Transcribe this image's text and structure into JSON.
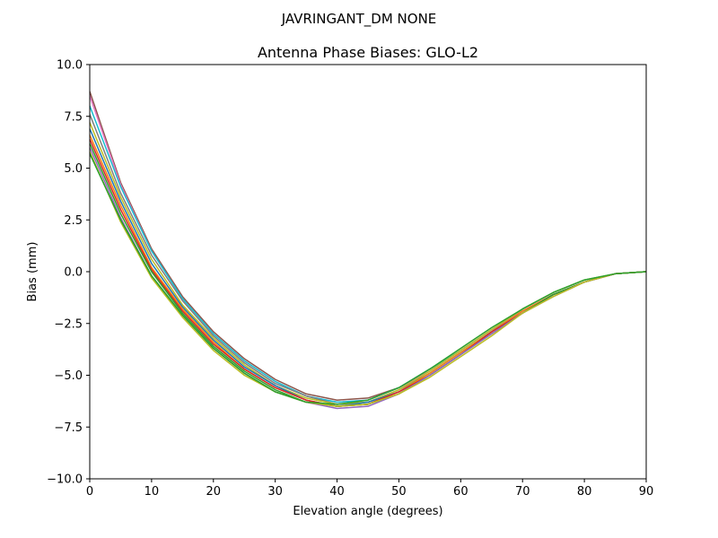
{
  "suptitle": "JAVRINGANT_DM   NONE",
  "chart_data": {
    "type": "line",
    "title": "Antenna Phase Biases: GLO-L2",
    "xlabel": "Elevation angle (degrees)",
    "ylabel": "Bias (mm)",
    "xlim": [
      0,
      90
    ],
    "ylim": [
      -10,
      10
    ],
    "xticks": [
      0,
      10,
      20,
      30,
      40,
      50,
      60,
      70,
      80,
      90
    ],
    "yticks": [
      -10.0,
      -7.5,
      -5.0,
      -2.5,
      0.0,
      2.5,
      5.0,
      7.5,
      10.0
    ],
    "xtick_labels": [
      "0",
      "10",
      "20",
      "30",
      "40",
      "50",
      "60",
      "70",
      "80",
      "90"
    ],
    "ytick_labels": [
      "−10.0",
      "−7.5",
      "−5.0",
      "−2.5",
      "0.0",
      "2.5",
      "5.0",
      "7.5",
      "10.0"
    ],
    "grid": false,
    "legend": "none",
    "x": [
      0,
      5,
      10,
      15,
      20,
      25,
      30,
      35,
      40,
      45,
      50,
      55,
      60,
      65,
      70,
      75,
      80,
      85,
      90
    ],
    "series": [
      {
        "color": "#8c564b",
        "values": [
          8.7,
          4.3,
          1.1,
          -1.2,
          -2.9,
          -4.2,
          -5.2,
          -5.9,
          -6.2,
          -6.1,
          -5.6,
          -4.8,
          -3.8,
          -2.8,
          -1.9,
          -1.1,
          -0.5,
          -0.1,
          0.0
        ]
      },
      {
        "color": "#e377c2",
        "values": [
          8.5,
          4.2,
          1.0,
          -1.3,
          -3.0,
          -4.3,
          -5.3,
          -6.0,
          -6.3,
          -6.2,
          -5.6,
          -4.8,
          -3.8,
          -2.8,
          -1.9,
          -1.1,
          -0.5,
          -0.1,
          0.0
        ]
      },
      {
        "color": "#17becf",
        "values": [
          8.0,
          4.1,
          1.0,
          -1.3,
          -3.0,
          -4.3,
          -5.3,
          -6.0,
          -6.3,
          -6.2,
          -5.6,
          -4.7,
          -3.8,
          -2.8,
          -1.8,
          -1.0,
          -0.4,
          -0.1,
          0.0
        ]
      },
      {
        "color": "#7f7f7f",
        "values": [
          7.6,
          3.8,
          0.8,
          -1.4,
          -3.1,
          -4.4,
          -5.4,
          -6.0,
          -6.4,
          -6.3,
          -5.7,
          -4.9,
          -3.9,
          -2.9,
          -1.9,
          -1.1,
          -0.5,
          -0.1,
          0.0
        ]
      },
      {
        "color": "#bcbd22",
        "values": [
          7.2,
          3.6,
          0.6,
          -1.6,
          -3.2,
          -4.5,
          -5.5,
          -6.1,
          -6.4,
          -6.3,
          -5.7,
          -4.8,
          -3.8,
          -2.8,
          -1.8,
          -1.0,
          -0.4,
          -0.1,
          0.0
        ]
      },
      {
        "color": "#1f77b4",
        "values": [
          6.9,
          3.4,
          0.4,
          -1.7,
          -3.3,
          -4.6,
          -5.5,
          -6.2,
          -6.5,
          -6.3,
          -5.8,
          -4.9,
          -3.9,
          -2.9,
          -1.9,
          -1.1,
          -0.5,
          -0.1,
          0.0
        ]
      },
      {
        "color": "#ff7f0e",
        "values": [
          6.6,
          3.2,
          0.2,
          -1.8,
          -3.4,
          -4.7,
          -5.6,
          -6.2,
          -6.5,
          -6.4,
          -5.8,
          -4.9,
          -3.9,
          -2.9,
          -1.9,
          -1.1,
          -0.5,
          -0.1,
          0.0
        ]
      },
      {
        "color": "#d62728",
        "values": [
          6.4,
          3.0,
          0.1,
          -1.9,
          -3.5,
          -4.7,
          -5.6,
          -6.2,
          -6.5,
          -6.4,
          -5.8,
          -5.0,
          -4.0,
          -2.9,
          -2.0,
          -1.1,
          -0.5,
          -0.1,
          0.0
        ]
      },
      {
        "color": "#2ca02c",
        "values": [
          6.2,
          2.8,
          0.0,
          -2.0,
          -3.6,
          -4.8,
          -5.7,
          -6.3,
          -6.5,
          -6.4,
          -5.9,
          -5.0,
          -4.0,
          -3.0,
          -2.0,
          -1.1,
          -0.5,
          -0.1,
          0.0
        ]
      },
      {
        "color": "#9467bd",
        "values": [
          6.0,
          2.6,
          -0.2,
          -2.1,
          -3.7,
          -4.9,
          -5.8,
          -6.3,
          -6.6,
          -6.5,
          -5.9,
          -5.0,
          -4.0,
          -3.0,
          -2.0,
          -1.2,
          -0.5,
          -0.1,
          0.0
        ]
      },
      {
        "color": "#bcbd22",
        "values": [
          5.8,
          2.4,
          -0.3,
          -2.2,
          -3.8,
          -5.0,
          -5.8,
          -6.3,
          -6.5,
          -6.4,
          -5.9,
          -5.1,
          -4.1,
          -3.1,
          -2.0,
          -1.2,
          -0.5,
          -0.1,
          0.0
        ]
      },
      {
        "color": "#2ca02c",
        "values": [
          5.7,
          2.5,
          -0.2,
          -2.1,
          -3.7,
          -4.9,
          -5.8,
          -6.3,
          -6.4,
          -6.2,
          -5.6,
          -4.7,
          -3.7,
          -2.7,
          -1.8,
          -1.0,
          -0.4,
          -0.1,
          0.0
        ]
      }
    ]
  }
}
